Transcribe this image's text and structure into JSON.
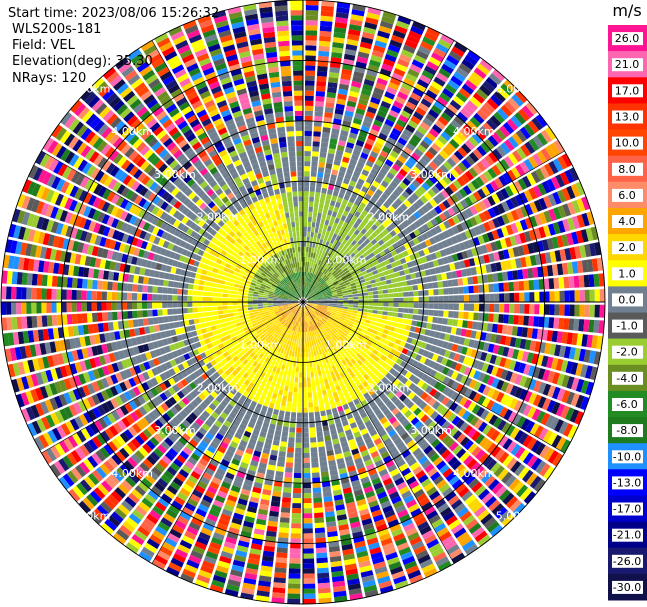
{
  "header": {
    "start_time": "Start time: 2023/08/06 15:26:32",
    "site": "WLS200s-181",
    "field": "Field: VEL",
    "elevation": "Elevation(deg): 35.30",
    "nrays": "NRays: 120"
  },
  "chart_data": {
    "type": "heatmap",
    "projection": "polar-ppi",
    "start_time": "2023/08/06 15:26:32",
    "site": "WLS200s-181",
    "field": "VEL",
    "elevation_deg": 35.3,
    "nrays": 120,
    "range_rings_km": [
      1.0,
      2.0,
      3.0,
      4.0,
      5.0
    ],
    "range_ring_labels": [
      "1.00km",
      "2.00km",
      "3.00km",
      "4.00km",
      "5.00km"
    ],
    "max_range_km": 5.0,
    "grid": true,
    "colorbar": {
      "unit": "m/s",
      "placement": "right",
      "tick_labels": [
        "26.0",
        "21.0",
        "17.0",
        "13.0",
        "10.0",
        "8.0",
        "6.0",
        "4.0",
        "2.0",
        "1.0",
        "0.0",
        "-1.0",
        "-2.0",
        "-4.0",
        "-6.0",
        "-8.0",
        "-10.0",
        "-13.0",
        "-17.0",
        "-21.0",
        "-26.0",
        "-30.0"
      ],
      "colors": [
        "#ff1493",
        "#ff66b2",
        "#ff0000",
        "#ff3300",
        "#ff4500",
        "#ff6347",
        "#ff8c69",
        "#ffa500",
        "#ffd700",
        "#ffff00",
        "#708090",
        "#5a5a5a",
        "#9acd32",
        "#6b8e23",
        "#228b22",
        "#1e7b1e",
        "#1e90ff",
        "#0000ff",
        "#0000cd",
        "#00008b",
        "#191970",
        "#10104a"
      ]
    },
    "pattern_description_values": {
      "near_zero_gray_core_km": [
        0.0,
        0.55
      ],
      "yellow_positive_ring_km": [
        1.0,
        1.9
      ],
      "green_negative_ring_km": [
        0.9,
        1.8
      ],
      "noise_beyond_km": 3.3
    }
  }
}
